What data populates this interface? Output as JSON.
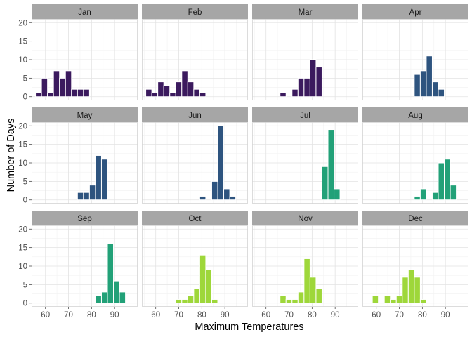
{
  "chart_data": {
    "type": "bar",
    "facet_layout": "4x3 grid",
    "xlabel": "Maximum Temperatures",
    "ylabel": "Number of Days",
    "xlim": [
      54,
      100
    ],
    "ylim": [
      -1,
      21
    ],
    "x_ticks": [
      60,
      70,
      80,
      90
    ],
    "y_ticks": [
      0,
      5,
      10,
      15,
      20
    ],
    "bin_width": 2.6,
    "grid": true,
    "legend": "none",
    "panels": [
      {
        "month": "Jan",
        "color": "#3b1a5e",
        "bins": [
          [
            57,
            1
          ],
          [
            59.6,
            5
          ],
          [
            62.2,
            1
          ],
          [
            64.8,
            7
          ],
          [
            67.4,
            5
          ],
          [
            70,
            7
          ],
          [
            72.6,
            2
          ],
          [
            75.2,
            2
          ],
          [
            77.8,
            2
          ]
        ]
      },
      {
        "month": "Feb",
        "color": "#3b1a5e",
        "bins": [
          [
            57,
            2
          ],
          [
            59.6,
            1
          ],
          [
            62.2,
            4
          ],
          [
            64.8,
            3
          ],
          [
            67.4,
            1
          ],
          [
            70,
            4
          ],
          [
            72.6,
            7
          ],
          [
            75.2,
            4
          ],
          [
            77.8,
            2
          ],
          [
            80.4,
            1
          ]
        ]
      },
      {
        "month": "Mar",
        "color": "#3b1a5e",
        "bins": [
          [
            67.4,
            1
          ],
          [
            72.6,
            2
          ],
          [
            75.2,
            5
          ],
          [
            77.8,
            5
          ],
          [
            80.4,
            10
          ],
          [
            83,
            8
          ]
        ]
      },
      {
        "month": "Apr",
        "color": "#2e547f",
        "bins": [
          [
            77.8,
            6
          ],
          [
            80.4,
            7
          ],
          [
            83,
            11
          ],
          [
            85.6,
            4
          ],
          [
            88.2,
            2
          ]
        ]
      },
      {
        "month": "May",
        "color": "#2e547f",
        "bins": [
          [
            75.2,
            2
          ],
          [
            77.8,
            2
          ],
          [
            80.4,
            4
          ],
          [
            83,
            12
          ],
          [
            85.6,
            11
          ]
        ]
      },
      {
        "month": "Jun",
        "color": "#2e547f",
        "bins": [
          [
            80.4,
            1
          ],
          [
            85.6,
            5
          ],
          [
            88.2,
            20
          ],
          [
            90.8,
            3
          ],
          [
            93.4,
            1
          ]
        ]
      },
      {
        "month": "Jul",
        "color": "#22a178",
        "bins": [
          [
            85.6,
            9
          ],
          [
            88.2,
            19
          ],
          [
            90.8,
            3
          ]
        ]
      },
      {
        "month": "Aug",
        "color": "#22a178",
        "bins": [
          [
            77.8,
            1
          ],
          [
            80.4,
            3
          ],
          [
            85.6,
            2
          ],
          [
            88.2,
            10
          ],
          [
            90.8,
            11
          ],
          [
            93.4,
            4
          ]
        ]
      },
      {
        "month": "Sep",
        "color": "#22a178",
        "bins": [
          [
            83,
            2
          ],
          [
            85.6,
            3
          ],
          [
            88.2,
            16
          ],
          [
            90.8,
            6
          ],
          [
            93.4,
            3
          ]
        ]
      },
      {
        "month": "Oct",
        "color": "#9ed73a",
        "bins": [
          [
            70,
            1
          ],
          [
            72.6,
            1
          ],
          [
            75.2,
            2
          ],
          [
            77.8,
            4
          ],
          [
            80.4,
            13
          ],
          [
            83,
            9
          ],
          [
            85.6,
            1
          ]
        ]
      },
      {
        "month": "Nov",
        "color": "#9ed73a",
        "bins": [
          [
            67.4,
            2
          ],
          [
            70,
            1
          ],
          [
            72.6,
            1
          ],
          [
            75.2,
            3
          ],
          [
            77.8,
            12
          ],
          [
            80.4,
            7
          ],
          [
            83,
            4
          ]
        ]
      },
      {
        "month": "Dec",
        "color": "#9ed73a",
        "bins": [
          [
            59.6,
            2
          ],
          [
            64.8,
            2
          ],
          [
            67.4,
            1
          ],
          [
            70,
            2
          ],
          [
            72.6,
            7
          ],
          [
            75.2,
            9
          ],
          [
            77.8,
            7
          ],
          [
            80.4,
            1
          ]
        ]
      }
    ]
  }
}
